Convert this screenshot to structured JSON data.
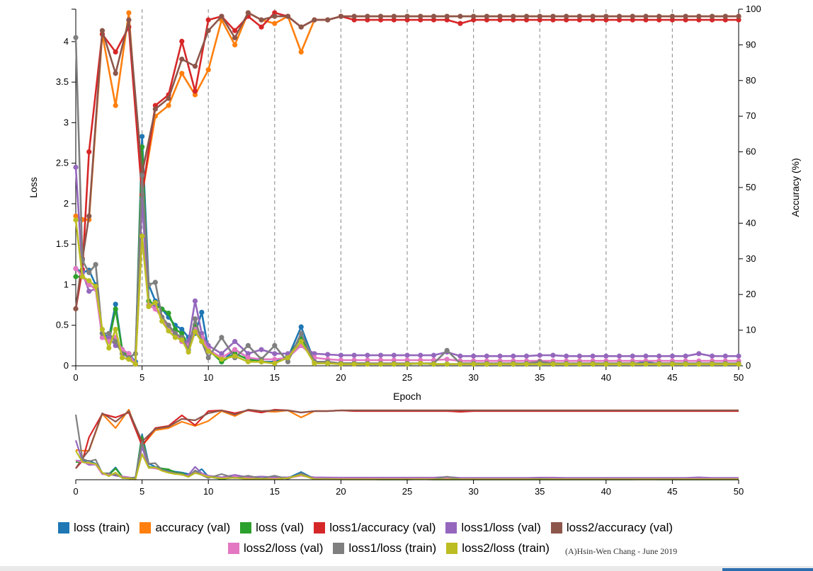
{
  "chart_data": {
    "type": "line",
    "xlabel": "Epoch",
    "ylabel_left": "Loss",
    "ylabel_right": "Accuracy (%)",
    "xlim": [
      0,
      50
    ],
    "ylim_left": [
      0,
      4.4
    ],
    "ylim_right": [
      0,
      100
    ],
    "x_ticks": [
      "0",
      "5",
      "10",
      "15",
      "20",
      "25",
      "30",
      "35",
      "40",
      "45",
      "50"
    ],
    "y_left_ticks": [
      "0",
      "0.5",
      "1",
      "1.5",
      "2",
      "2.5",
      "3",
      "3.5",
      "4"
    ],
    "y_right_ticks": [
      "0",
      "10",
      "20",
      "30",
      "40",
      "50",
      "60",
      "70",
      "80",
      "90",
      "100"
    ],
    "vertical_gridlines_every": 5,
    "series": [
      {
        "name": "loss (train)",
        "axis": "left",
        "color": "#1f77b4",
        "x": [
          0,
          0.5,
          1,
          1.5,
          2,
          2.5,
          3,
          3.5,
          4,
          4.5,
          5,
          5.5,
          6,
          6.5,
          7,
          7.5,
          8,
          8.5,
          9,
          9.5,
          10,
          11,
          12,
          13,
          14,
          15,
          16,
          17,
          18,
          19,
          20,
          21,
          22,
          23,
          24,
          25,
          26,
          27,
          28,
          29,
          30,
          31,
          32,
          33,
          34,
          35,
          36,
          37,
          38,
          39,
          40,
          41,
          42,
          43,
          44,
          45,
          46,
          47,
          48,
          49,
          50
        ],
        "values": [
          1.2,
          1.15,
          1.18,
          1.0,
          0.4,
          0.35,
          0.76,
          0.2,
          0.15,
          0.05,
          2.83,
          1.0,
          0.8,
          0.7,
          0.6,
          0.5,
          0.45,
          0.35,
          0.4,
          0.66,
          0.2,
          0.05,
          0.2,
          0.1,
          0.05,
          0.05,
          0.1,
          0.48,
          0.05,
          0.03,
          0.03,
          0.03,
          0.03,
          0.02,
          0.02,
          0.02,
          0.03,
          0.02,
          0.02,
          0.02,
          0.02,
          0.02,
          0.02,
          0.02,
          0.02,
          0.02,
          0.02,
          0.02,
          0.02,
          0.02,
          0.02,
          0.02,
          0.02,
          0.05,
          0.02,
          0.02,
          0.02,
          0.02,
          0.02,
          0.02,
          0.02
        ]
      },
      {
        "name": "accuracy (val)",
        "axis": "right",
        "color": "#ff7f0e",
        "x": [
          0,
          0.5,
          1,
          2,
          3,
          4,
          5,
          6,
          7,
          8,
          9,
          10,
          11,
          12,
          13,
          14,
          15,
          16,
          17,
          18,
          19,
          20,
          21,
          22,
          23,
          24,
          25,
          26,
          27,
          28,
          29,
          30,
          31,
          32,
          33,
          34,
          35,
          36,
          37,
          38,
          39,
          40,
          41,
          42,
          43,
          44,
          45,
          46,
          47,
          48,
          49,
          50
        ],
        "values": [
          42,
          41,
          41,
          93,
          73,
          99,
          48,
          70,
          73,
          82,
          76,
          83,
          97,
          90,
          99,
          97,
          96,
          98,
          88,
          97,
          97,
          98,
          98,
          98,
          98,
          98,
          98,
          98,
          98,
          98,
          98,
          98,
          98,
          98,
          98,
          98,
          98,
          98,
          98,
          98,
          98,
          98,
          98,
          98,
          98,
          98,
          98,
          98,
          98,
          98,
          98,
          98
        ]
      },
      {
        "name": "loss (val)",
        "axis": "left",
        "color": "#2ca02c",
        "x": [
          0,
          0.5,
          1,
          1.5,
          2,
          2.5,
          3,
          3.5,
          4,
          4.5,
          5,
          5.5,
          6,
          6.5,
          7,
          7.5,
          8,
          8.5,
          9,
          9.5,
          10,
          11,
          12,
          13,
          14,
          15,
          16,
          17,
          18,
          19,
          20,
          21,
          22,
          23,
          24,
          25,
          26,
          27,
          28,
          29,
          30,
          31,
          32,
          33,
          34,
          35,
          36,
          37,
          38,
          39,
          40,
          41,
          42,
          43,
          44,
          45,
          46,
          47,
          48,
          49,
          50
        ],
        "values": [
          1.1,
          1.1,
          1.0,
          0.95,
          0.4,
          0.3,
          0.7,
          0.2,
          0.1,
          0.02,
          2.7,
          0.8,
          0.75,
          0.7,
          0.65,
          0.45,
          0.4,
          0.25,
          0.5,
          0.35,
          0.2,
          0.05,
          0.15,
          0.08,
          0.05,
          0.03,
          0.12,
          0.35,
          0.05,
          0.03,
          0.03,
          0.03,
          0.03,
          0.02,
          0.02,
          0.02,
          0.03,
          0.02,
          0.02,
          0.02,
          0.02,
          0.02,
          0.02,
          0.02,
          0.02,
          0.02,
          0.02,
          0.02,
          0.02,
          0.02,
          0.02,
          0.02,
          0.02,
          0.02,
          0.02,
          0.02,
          0.02,
          0.02,
          0.02,
          0.02,
          0.02
        ]
      },
      {
        "name": "loss1/accuracy (val)",
        "axis": "right",
        "color": "#d62728",
        "x": [
          0,
          0.5,
          1,
          2,
          3,
          4,
          5,
          6,
          7,
          8,
          9,
          10,
          11,
          12,
          13,
          14,
          15,
          16,
          17,
          18,
          19,
          20,
          21,
          22,
          23,
          24,
          25,
          26,
          27,
          28,
          29,
          30,
          31,
          32,
          33,
          34,
          35,
          36,
          37,
          38,
          39,
          40,
          41,
          42,
          43,
          44,
          45,
          46,
          47,
          48,
          49,
          50
        ],
        "values": [
          16,
          27,
          60,
          93,
          88,
          95,
          48,
          73,
          76,
          91,
          77,
          97,
          98,
          94,
          98,
          95,
          99,
          98,
          95,
          97,
          97,
          98,
          97,
          97,
          97,
          97,
          97,
          97,
          97,
          97,
          96,
          97,
          97,
          97,
          97,
          97,
          97,
          97,
          97,
          97,
          97,
          97,
          97,
          97,
          97,
          97,
          97,
          97,
          97,
          97,
          97,
          97
        ]
      },
      {
        "name": "loss1/loss (val)",
        "axis": "left",
        "color": "#9467bd",
        "x": [
          0,
          0.5,
          1,
          1.5,
          2,
          2.5,
          3,
          3.5,
          4,
          4.5,
          5,
          5.5,
          6,
          6.5,
          7,
          7.5,
          8,
          8.5,
          9,
          9.5,
          10,
          11,
          12,
          13,
          14,
          15,
          16,
          17,
          18,
          19,
          20,
          21,
          22,
          23,
          24,
          25,
          26,
          27,
          28,
          29,
          30,
          31,
          32,
          33,
          34,
          35,
          36,
          37,
          38,
          39,
          40,
          41,
          42,
          43,
          44,
          45,
          46,
          47,
          48,
          49,
          50
        ],
        "values": [
          2.45,
          1.15,
          0.92,
          0.95,
          0.35,
          0.35,
          0.25,
          0.2,
          0.15,
          0.02,
          2.05,
          0.75,
          0.75,
          0.6,
          0.5,
          0.4,
          0.3,
          0.3,
          0.8,
          0.4,
          0.25,
          0.15,
          0.3,
          0.15,
          0.2,
          0.15,
          0.15,
          0.25,
          0.15,
          0.14,
          0.13,
          0.13,
          0.13,
          0.13,
          0.13,
          0.13,
          0.13,
          0.13,
          0.17,
          0.12,
          0.12,
          0.12,
          0.12,
          0.12,
          0.12,
          0.13,
          0.13,
          0.12,
          0.12,
          0.12,
          0.12,
          0.12,
          0.12,
          0.12,
          0.12,
          0.12,
          0.12,
          0.15,
          0.12,
          0.12,
          0.12
        ]
      },
      {
        "name": "loss2/accuracy (val)",
        "axis": "right",
        "color": "#8c564b",
        "x": [
          0,
          0.5,
          1,
          2,
          3,
          4,
          5,
          6,
          7,
          8,
          9,
          10,
          11,
          12,
          13,
          14,
          15,
          16,
          17,
          18,
          19,
          20,
          21,
          22,
          23,
          24,
          25,
          26,
          27,
          28,
          29,
          30,
          31,
          32,
          33,
          34,
          35,
          36,
          37,
          38,
          39,
          40,
          41,
          42,
          43,
          44,
          45,
          46,
          47,
          48,
          49,
          50
        ],
        "values": [
          16,
          30,
          42,
          94,
          82,
          97,
          54,
          72,
          75,
          86,
          84,
          94,
          98,
          92,
          99,
          97,
          98,
          98,
          95,
          97,
          97,
          98,
          98,
          98,
          98,
          98,
          98,
          98,
          98,
          98,
          98,
          98,
          98,
          98,
          98,
          98,
          98,
          98,
          98,
          98,
          98,
          98,
          98,
          98,
          98,
          98,
          98,
          98,
          98,
          98,
          98,
          98
        ]
      },
      {
        "name": "loss2/loss (val)",
        "axis": "left",
        "color": "#e377c2",
        "x": [
          0,
          0.5,
          1,
          1.5,
          2,
          2.5,
          3,
          3.5,
          4,
          4.5,
          5,
          5.5,
          6,
          6.5,
          7,
          7.5,
          8,
          8.5,
          9,
          9.5,
          10,
          11,
          12,
          13,
          14,
          15,
          16,
          17,
          18,
          19,
          20,
          21,
          22,
          23,
          24,
          25,
          26,
          27,
          28,
          29,
          30,
          31,
          32,
          33,
          34,
          35,
          36,
          37,
          38,
          39,
          40,
          41,
          42,
          43,
          44,
          45,
          46,
          47,
          48,
          49,
          50
        ],
        "values": [
          1.2,
          1.1,
          1.0,
          0.95,
          0.35,
          0.3,
          0.35,
          0.2,
          0.15,
          0.02,
          1.6,
          0.75,
          0.7,
          0.6,
          0.45,
          0.4,
          0.3,
          0.25,
          0.45,
          0.35,
          0.2,
          0.1,
          0.2,
          0.1,
          0.08,
          0.08,
          0.1,
          0.25,
          0.1,
          0.08,
          0.07,
          0.07,
          0.07,
          0.07,
          0.07,
          0.07,
          0.07,
          0.07,
          0.08,
          0.06,
          0.06,
          0.06,
          0.06,
          0.06,
          0.06,
          0.06,
          0.06,
          0.06,
          0.06,
          0.06,
          0.06,
          0.06,
          0.06,
          0.06,
          0.06,
          0.06,
          0.06,
          0.06,
          0.06,
          0.06,
          0.06
        ]
      },
      {
        "name": "loss1/loss (train)",
        "axis": "left",
        "color": "#7f7f7f",
        "x": [
          0,
          0.5,
          1,
          1.5,
          2,
          2.5,
          3,
          3.5,
          4,
          4.5,
          5,
          5.5,
          6,
          6.5,
          7,
          7.5,
          8,
          8.5,
          9,
          9.5,
          10,
          11,
          12,
          13,
          14,
          15,
          16,
          17,
          18,
          19,
          20,
          21,
          22,
          23,
          24,
          25,
          26,
          27,
          28,
          29,
          30,
          31,
          32,
          33,
          34,
          35,
          36,
          37,
          38,
          39,
          40,
          41,
          42,
          43,
          44,
          45,
          46,
          47,
          48,
          49,
          50
        ],
        "values": [
          4.05,
          1.3,
          1.15,
          1.25,
          0.4,
          0.4,
          0.3,
          0.15,
          0.1,
          0.15,
          2.35,
          1.0,
          1.03,
          0.6,
          0.5,
          0.4,
          0.35,
          0.2,
          0.58,
          0.3,
          0.1,
          0.35,
          0.1,
          0.25,
          0.08,
          0.25,
          0.05,
          0.4,
          0.05,
          0.05,
          0.03,
          0.03,
          0.03,
          0.03,
          0.03,
          0.03,
          0.03,
          0.03,
          0.19,
          0.03,
          0.03,
          0.03,
          0.03,
          0.03,
          0.03,
          0.05,
          0.03,
          0.03,
          0.03,
          0.03,
          0.03,
          0.03,
          0.03,
          0.03,
          0.03,
          0.03,
          0.03,
          0.03,
          0.03,
          0.03,
          0.03
        ]
      },
      {
        "name": "loss2/loss (train)",
        "axis": "left",
        "color": "#bcbd22",
        "x": [
          0,
          0.5,
          1,
          1.5,
          2,
          2.5,
          3,
          3.5,
          4,
          4.5,
          5,
          5.5,
          6,
          6.5,
          7,
          7.5,
          8,
          8.5,
          9,
          9.5,
          10,
          11,
          12,
          13,
          14,
          15,
          16,
          17,
          18,
          19,
          20,
          21,
          22,
          23,
          24,
          25,
          26,
          27,
          28,
          29,
          30,
          31,
          32,
          33,
          34,
          35,
          36,
          37,
          38,
          39,
          40,
          41,
          42,
          43,
          44,
          45,
          46,
          47,
          48,
          49,
          50
        ],
        "values": [
          1.8,
          1.1,
          1.05,
          0.98,
          0.45,
          0.22,
          0.45,
          0.1,
          0.08,
          0.02,
          1.6,
          0.73,
          0.78,
          0.55,
          0.43,
          0.35,
          0.32,
          0.17,
          0.42,
          0.3,
          0.18,
          0.08,
          0.12,
          0.05,
          0.05,
          0.03,
          0.1,
          0.3,
          0.03,
          0.03,
          0.02,
          0.02,
          0.02,
          0.02,
          0.02,
          0.02,
          0.03,
          0.02,
          0.02,
          0.02,
          0.02,
          0.02,
          0.02,
          0.02,
          0.02,
          0.02,
          0.02,
          0.02,
          0.02,
          0.02,
          0.02,
          0.02,
          0.02,
          0.02,
          0.02,
          0.02,
          0.02,
          0.02,
          0.02,
          0.02,
          0.02
        ]
      }
    ],
    "overview": {
      "x_ticks": [
        "0",
        "5",
        "10",
        "15",
        "20",
        "25",
        "30",
        "35",
        "40",
        "45",
        "50"
      ]
    }
  },
  "legend": {
    "credit": "(A)Hsin-Wen Chang - June 2019"
  }
}
